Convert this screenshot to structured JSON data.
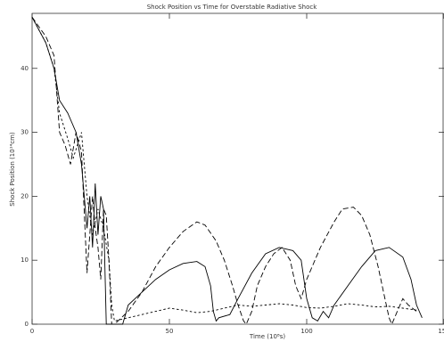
{
  "chart_data": {
    "type": "line",
    "title": "Shock Position vs Time for Overstable Radiative Shock",
    "x_label": "Time (10⁸s)",
    "y_label": "Shock Position (10¹⁴cm)",
    "xlim": [
      0,
      150
    ],
    "ylim": [
      0,
      48.6
    ],
    "xticks": [
      0,
      50,
      100,
      150
    ],
    "yticks": [
      0,
      10,
      20,
      30,
      40
    ],
    "grid": false,
    "series": [
      {
        "color": "#000000",
        "line_style": "solid",
        "x": [
          0,
          5,
          8,
          10,
          13,
          16,
          18,
          20,
          21,
          22,
          23,
          24,
          25,
          26,
          27,
          30,
          33,
          35,
          40,
          45,
          50,
          55,
          60,
          63,
          65,
          66,
          67,
          68,
          72,
          75,
          80,
          85,
          90,
          95,
          98,
          100,
          102,
          104,
          106,
          108,
          110,
          115,
          120,
          125,
          130,
          135,
          138,
          140,
          142
        ],
        "values": [
          48,
          44,
          40,
          35,
          33,
          30,
          25,
          15,
          20,
          12,
          22,
          14,
          20,
          18,
          0,
          0,
          0,
          3,
          5,
          7,
          8.5,
          9.5,
          9.8,
          9,
          6,
          2,
          0.5,
          1,
          1.5,
          4,
          8,
          11,
          12,
          11.5,
          10,
          4,
          1,
          0.5,
          2,
          1,
          3,
          6,
          9,
          11.5,
          12,
          10.5,
          7,
          3,
          1
        ]
      },
      {
        "color": "#000000",
        "line_style": "long",
        "x": [
          0,
          5,
          8,
          10,
          12,
          14,
          16,
          18,
          20,
          22,
          23,
          24,
          25,
          26,
          27,
          28,
          29,
          30,
          35,
          40,
          45,
          50,
          55,
          60,
          63,
          67,
          70,
          73,
          75,
          77,
          78,
          80,
          82,
          85,
          88,
          91,
          94,
          96,
          98,
          100,
          105,
          110,
          113,
          117,
          120,
          123,
          126,
          128,
          130,
          131,
          133,
          135,
          137,
          140
        ],
        "values": [
          48,
          45,
          42,
          30,
          28,
          25,
          30,
          27,
          8,
          20,
          15,
          12,
          7,
          18,
          17,
          10,
          0,
          0,
          2,
          5,
          9,
          12,
          14.5,
          16,
          15.5,
          13,
          10,
          6,
          3,
          0.5,
          0,
          2,
          6,
          9,
          11,
          12,
          10,
          6,
          4,
          7,
          12,
          16,
          18,
          18.3,
          17,
          14,
          9,
          5,
          1,
          0,
          2,
          4,
          3,
          2
        ]
      },
      {
        "color": "#000000",
        "line_style": "short",
        "x": [
          0,
          5,
          8,
          10,
          13,
          15,
          18,
          20,
          22,
          24,
          26,
          28,
          29,
          30,
          35,
          40,
          45,
          50,
          55,
          60,
          65,
          70,
          75,
          80,
          85,
          90,
          95,
          100,
          105,
          110,
          115,
          120,
          125,
          130,
          135,
          140
        ],
        "values": [
          48,
          44,
          40,
          33,
          29,
          26,
          30,
          20,
          14,
          18,
          15,
          10,
          3,
          0.5,
          1,
          1.5,
          2,
          2.5,
          2.2,
          1.8,
          2,
          2.5,
          3,
          2.8,
          3,
          3.2,
          3,
          2.6,
          2.5,
          2.8,
          3.2,
          3,
          2.7,
          2.8,
          2.5,
          2.2
        ]
      }
    ]
  }
}
